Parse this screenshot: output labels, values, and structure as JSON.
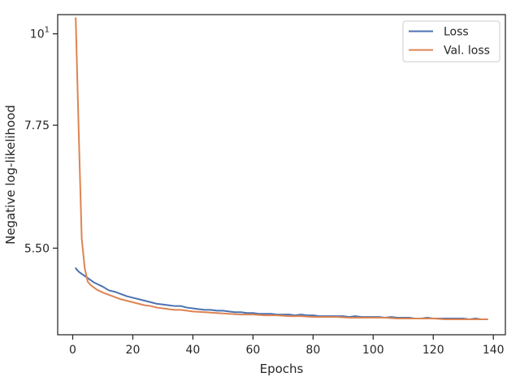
{
  "chart_data": {
    "type": "line",
    "title": "",
    "xlabel": "Epochs",
    "ylabel": "Negative log-likelihood",
    "y_scale": "log",
    "xlim": [
      -5,
      144
    ],
    "ylim": [
      4.32,
      10.55
    ],
    "xticks": [
      0,
      20,
      40,
      60,
      80,
      100,
      120,
      140
    ],
    "xtick_labels": [
      "0",
      "20",
      "40",
      "60",
      "80",
      "100",
      "120",
      "140"
    ],
    "yticks": [
      5.5,
      7.75,
      10
    ],
    "ytick_labels": [
      "5.50",
      "7.75",
      "10"
    ],
    "legend_position": "top-right",
    "grid": false,
    "series": [
      {
        "name": "Loss",
        "color": "#4c72b0",
        "x": [
          1,
          2,
          3,
          4,
          5,
          6,
          7,
          8,
          9,
          10,
          12,
          14,
          16,
          18,
          20,
          22,
          24,
          26,
          28,
          30,
          32,
          34,
          36,
          38,
          40,
          42,
          44,
          46,
          48,
          50,
          52,
          54,
          56,
          58,
          60,
          62,
          64,
          66,
          68,
          70,
          72,
          74,
          76,
          78,
          80,
          82,
          84,
          86,
          88,
          90,
          92,
          94,
          96,
          98,
          100,
          102,
          104,
          106,
          108,
          110,
          112,
          114,
          116,
          118,
          120,
          122,
          124,
          126,
          128,
          130,
          132,
          134,
          136,
          138
        ],
        "y": [
          5.2,
          5.15,
          5.12,
          5.09,
          5.06,
          5.03,
          5.0,
          4.98,
          4.96,
          4.94,
          4.89,
          4.87,
          4.84,
          4.81,
          4.79,
          4.77,
          4.75,
          4.73,
          4.71,
          4.7,
          4.69,
          4.68,
          4.68,
          4.66,
          4.65,
          4.64,
          4.63,
          4.63,
          4.62,
          4.62,
          4.61,
          4.6,
          4.6,
          4.59,
          4.59,
          4.58,
          4.58,
          4.58,
          4.57,
          4.57,
          4.57,
          4.56,
          4.57,
          4.56,
          4.56,
          4.55,
          4.55,
          4.55,
          4.55,
          4.55,
          4.54,
          4.55,
          4.54,
          4.54,
          4.54,
          4.54,
          4.53,
          4.54,
          4.53,
          4.53,
          4.53,
          4.52,
          4.52,
          4.53,
          4.52,
          4.52,
          4.52,
          4.52,
          4.52,
          4.52,
          4.51,
          4.52,
          4.51,
          4.51
        ]
      },
      {
        "name": "Val. loss",
        "color": "#dd8452",
        "x": [
          1,
          2,
          3,
          4,
          5,
          6,
          7,
          8,
          9,
          10,
          12,
          14,
          16,
          18,
          20,
          22,
          24,
          26,
          28,
          30,
          32,
          34,
          36,
          38,
          40,
          44,
          48,
          52,
          56,
          60,
          64,
          68,
          72,
          76,
          80,
          84,
          88,
          92,
          96,
          100,
          104,
          108,
          112,
          116,
          120,
          124,
          128,
          132,
          136,
          138
        ],
        "y": [
          10.45,
          7.6,
          5.65,
          5.2,
          5.01,
          4.96,
          4.93,
          4.9,
          4.88,
          4.86,
          4.83,
          4.8,
          4.77,
          4.75,
          4.73,
          4.71,
          4.69,
          4.68,
          4.66,
          4.65,
          4.64,
          4.63,
          4.63,
          4.62,
          4.61,
          4.6,
          4.59,
          4.58,
          4.57,
          4.57,
          4.56,
          4.56,
          4.55,
          4.55,
          4.54,
          4.54,
          4.54,
          4.53,
          4.53,
          4.53,
          4.53,
          4.52,
          4.52,
          4.52,
          4.52,
          4.51,
          4.51,
          4.51,
          4.51,
          4.51
        ]
      }
    ]
  }
}
